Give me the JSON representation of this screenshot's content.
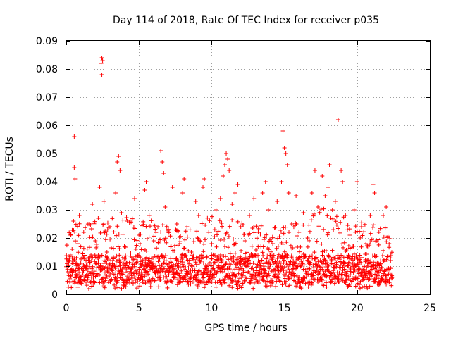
{
  "chart_data": {
    "type": "scatter",
    "title": "Day 114 of 2018, Rate Of TEC Index for receiver p035",
    "xlabel": "GPS time / hours",
    "ylabel": "ROTI / TECUs",
    "xlim": [
      0,
      25
    ],
    "ylim": [
      0,
      0.09
    ],
    "xticks": [
      0,
      5,
      10,
      15,
      20,
      25
    ],
    "xtick_labels": [
      "0",
      "5",
      "10",
      "15",
      "20",
      "25"
    ],
    "yticks": [
      0,
      0.01,
      0.02,
      0.03,
      0.04,
      0.05,
      0.06,
      0.07,
      0.08,
      0.09
    ],
    "ytick_labels": [
      "0",
      "0.01",
      "0.02",
      "0.03",
      "0.04",
      "0.05",
      "0.06",
      "0.07",
      "0.08",
      "0.09"
    ],
    "grid": true,
    "marker": "+",
    "series": [
      {
        "name": "ROTI",
        "color": "#ff0000",
        "points": [
          [
            0.1,
            0.008
          ],
          [
            0.2,
            0.012
          ],
          [
            0.3,
            0.021
          ],
          [
            0.4,
            0.016
          ],
          [
            0.5,
            0.026
          ],
          [
            0.55,
            0.045
          ],
          [
            0.55,
            0.056
          ],
          [
            0.6,
            0.041
          ],
          [
            0.7,
            0.013
          ],
          [
            0.8,
            0.018
          ],
          [
            0.9,
            0.028
          ],
          [
            1.0,
            0.011
          ],
          [
            1.2,
            0.022
          ],
          [
            1.4,
            0.009
          ],
          [
            1.6,
            0.025
          ],
          [
            1.7,
            0.014
          ],
          [
            1.8,
            0.032
          ],
          [
            2.0,
            0.019
          ],
          [
            2.2,
            0.027
          ],
          [
            2.3,
            0.038
          ],
          [
            2.4,
            0.082
          ],
          [
            2.45,
            0.084
          ],
          [
            2.45,
            0.078
          ],
          [
            2.5,
            0.083
          ],
          [
            2.6,
            0.033
          ],
          [
            2.8,
            0.015
          ],
          [
            3.0,
            0.024
          ],
          [
            3.2,
            0.012
          ],
          [
            3.4,
            0.036
          ],
          [
            3.5,
            0.047
          ],
          [
            3.6,
            0.049
          ],
          [
            3.7,
            0.044
          ],
          [
            3.8,
            0.029
          ],
          [
            4.0,
            0.017
          ],
          [
            4.2,
            0.026
          ],
          [
            4.5,
            0.013
          ],
          [
            4.7,
            0.034
          ],
          [
            5.0,
            0.021
          ],
          [
            5.2,
            0.016
          ],
          [
            5.4,
            0.037
          ],
          [
            5.5,
            0.04
          ],
          [
            5.7,
            0.028
          ],
          [
            6.0,
            0.019
          ],
          [
            6.3,
            0.024
          ],
          [
            6.5,
            0.051
          ],
          [
            6.6,
            0.047
          ],
          [
            6.7,
            0.043
          ],
          [
            6.8,
            0.031
          ],
          [
            7.0,
            0.022
          ],
          [
            7.3,
            0.038
          ],
          [
            7.6,
            0.025
          ],
          [
            7.8,
            0.018
          ],
          [
            8.0,
            0.036
          ],
          [
            8.1,
            0.041
          ],
          [
            8.3,
            0.024
          ],
          [
            8.6,
            0.015
          ],
          [
            8.9,
            0.033
          ],
          [
            9.1,
            0.028
          ],
          [
            9.4,
            0.038
          ],
          [
            9.5,
            0.041
          ],
          [
            9.8,
            0.022
          ],
          [
            10.0,
            0.018
          ],
          [
            10.3,
            0.03
          ],
          [
            10.6,
            0.034
          ],
          [
            10.8,
            0.042
          ],
          [
            10.9,
            0.046
          ],
          [
            11.0,
            0.05
          ],
          [
            11.1,
            0.048
          ],
          [
            11.2,
            0.044
          ],
          [
            11.4,
            0.032
          ],
          [
            11.6,
            0.036
          ],
          [
            11.8,
            0.039
          ],
          [
            12.0,
            0.024
          ],
          [
            12.3,
            0.019
          ],
          [
            12.6,
            0.028
          ],
          [
            12.9,
            0.034
          ],
          [
            13.2,
            0.022
          ],
          [
            13.5,
            0.036
          ],
          [
            13.7,
            0.04
          ],
          [
            13.9,
            0.03
          ],
          [
            14.2,
            0.018
          ],
          [
            14.5,
            0.033
          ],
          [
            14.8,
            0.04
          ],
          [
            14.9,
            0.058
          ],
          [
            15.0,
            0.052
          ],
          [
            15.1,
            0.05
          ],
          [
            15.2,
            0.046
          ],
          [
            15.3,
            0.036
          ],
          [
            15.5,
            0.025
          ],
          [
            15.8,
            0.035
          ],
          [
            16.0,
            0.022
          ],
          [
            16.3,
            0.029
          ],
          [
            16.6,
            0.02
          ],
          [
            16.9,
            0.036
          ],
          [
            17.1,
            0.044
          ],
          [
            17.3,
            0.031
          ],
          [
            17.6,
            0.042
          ],
          [
            17.8,
            0.035
          ],
          [
            18.0,
            0.038
          ],
          [
            18.1,
            0.046
          ],
          [
            18.3,
            0.03
          ],
          [
            18.5,
            0.033
          ],
          [
            18.7,
            0.062
          ],
          [
            18.9,
            0.044
          ],
          [
            19.0,
            0.04
          ],
          [
            19.2,
            0.028
          ],
          [
            19.5,
            0.021
          ],
          [
            19.8,
            0.03
          ],
          [
            20.0,
            0.04
          ],
          [
            20.3,
            0.024
          ],
          [
            20.6,
            0.018
          ],
          [
            20.9,
            0.028
          ],
          [
            21.1,
            0.039
          ],
          [
            21.2,
            0.036
          ],
          [
            21.5,
            0.022
          ],
          [
            21.8,
            0.028
          ],
          [
            22.0,
            0.031
          ],
          [
            22.2,
            0.018
          ],
          [
            22.3,
            0.012
          ]
        ],
        "band": {
          "x_start": 0.0,
          "x_end": 22.4,
          "x_step": 0.05,
          "typical_low": 0.004,
          "typical_high": 0.014,
          "upper_envelope": [
            [
              0,
              0.025
            ],
            [
              2,
              0.026
            ],
            [
              4,
              0.028
            ],
            [
              6,
              0.026
            ],
            [
              8,
              0.022
            ],
            [
              10,
              0.028
            ],
            [
              12,
              0.026
            ],
            [
              14,
              0.024
            ],
            [
              16,
              0.026
            ],
            [
              18,
              0.032
            ],
            [
              20,
              0.026
            ],
            [
              22.4,
              0.026
            ]
          ]
        }
      }
    ]
  }
}
